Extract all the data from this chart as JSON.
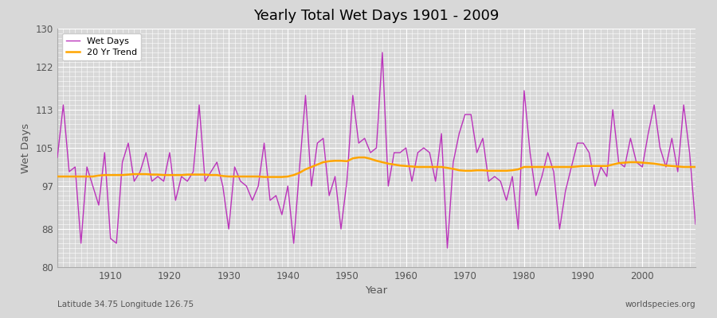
{
  "title": "Yearly Total Wet Days 1901 - 2009",
  "xlabel": "Year",
  "ylabel": "Wet Days",
  "subtitle_left": "Latitude 34.75 Longitude 126.75",
  "subtitle_right": "worldspecies.org",
  "wet_days_color": "#bb33bb",
  "trend_color": "#FFA500",
  "background_color": "#d8d8d8",
  "plot_bg_color": "#d8d8d8",
  "ylim": [
    80,
    130
  ],
  "yticks": [
    80,
    88,
    97,
    105,
    113,
    122,
    130
  ],
  "years": [
    1901,
    1902,
    1903,
    1904,
    1905,
    1906,
    1907,
    1908,
    1909,
    1910,
    1911,
    1912,
    1913,
    1914,
    1915,
    1916,
    1917,
    1918,
    1919,
    1920,
    1921,
    1922,
    1923,
    1924,
    1925,
    1926,
    1927,
    1928,
    1929,
    1930,
    1931,
    1932,
    1933,
    1934,
    1935,
    1936,
    1937,
    1938,
    1939,
    1940,
    1941,
    1942,
    1943,
    1944,
    1945,
    1946,
    1947,
    1948,
    1949,
    1950,
    1951,
    1952,
    1953,
    1954,
    1955,
    1956,
    1957,
    1958,
    1959,
    1960,
    1961,
    1962,
    1963,
    1964,
    1965,
    1966,
    1967,
    1968,
    1969,
    1970,
    1971,
    1972,
    1973,
    1974,
    1975,
    1976,
    1977,
    1978,
    1979,
    1980,
    1981,
    1982,
    1983,
    1984,
    1985,
    1986,
    1987,
    1988,
    1989,
    1990,
    1991,
    1992,
    1993,
    1994,
    1995,
    1996,
    1997,
    1998,
    1999,
    2000,
    2001,
    2002,
    2003,
    2004,
    2005,
    2006,
    2007,
    2008,
    2009
  ],
  "wet_days": [
    103,
    114,
    100,
    101,
    85,
    101,
    97,
    93,
    104,
    86,
    85,
    102,
    106,
    98,
    100,
    104,
    98,
    99,
    98,
    104,
    94,
    99,
    98,
    100,
    114,
    98,
    100,
    102,
    97,
    88,
    101,
    98,
    97,
    94,
    97,
    106,
    94,
    95,
    91,
    97,
    85,
    101,
    116,
    97,
    106,
    107,
    95,
    99,
    88,
    98,
    116,
    106,
    107,
    104,
    105,
    125,
    97,
    104,
    104,
    105,
    98,
    104,
    105,
    104,
    98,
    108,
    84,
    102,
    108,
    112,
    112,
    104,
    107,
    98,
    99,
    98,
    94,
    99,
    88,
    117,
    104,
    95,
    99,
    104,
    100,
    88,
    96,
    101,
    106,
    106,
    104,
    97,
    101,
    99,
    113,
    102,
    101,
    107,
    102,
    101,
    108,
    114,
    105,
    101,
    107,
    100,
    114,
    104,
    89
  ],
  "trend": [
    99.0,
    99.0,
    99.0,
    99.0,
    99.0,
    99.0,
    99.0,
    99.2,
    99.3,
    99.3,
    99.3,
    99.3,
    99.4,
    99.5,
    99.5,
    99.5,
    99.4,
    99.4,
    99.3,
    99.3,
    99.3,
    99.3,
    99.4,
    99.4,
    99.4,
    99.4,
    99.3,
    99.3,
    99.1,
    99.0,
    99.0,
    99.0,
    99.0,
    99.0,
    99.0,
    98.9,
    98.9,
    98.9,
    98.9,
    99.0,
    99.3,
    99.8,
    100.5,
    101.0,
    101.5,
    102.0,
    102.2,
    102.3,
    102.3,
    102.2,
    102.8,
    103.0,
    103.0,
    102.7,
    102.3,
    102.0,
    101.7,
    101.5,
    101.3,
    101.2,
    101.1,
    101.0,
    101.0,
    101.0,
    101.0,
    101.0,
    100.8,
    100.6,
    100.3,
    100.2,
    100.2,
    100.3,
    100.3,
    100.2,
    100.2,
    100.2,
    100.2,
    100.3,
    100.5,
    101.0,
    101.0,
    101.0,
    101.0,
    101.0,
    101.0,
    101.0,
    101.0,
    101.0,
    101.1,
    101.2,
    101.2,
    101.2,
    101.2,
    101.2,
    101.5,
    101.8,
    101.9,
    102.0,
    102.0,
    101.9,
    101.8,
    101.7,
    101.5,
    101.3,
    101.2,
    101.1,
    101.0,
    101.0,
    101.0
  ]
}
